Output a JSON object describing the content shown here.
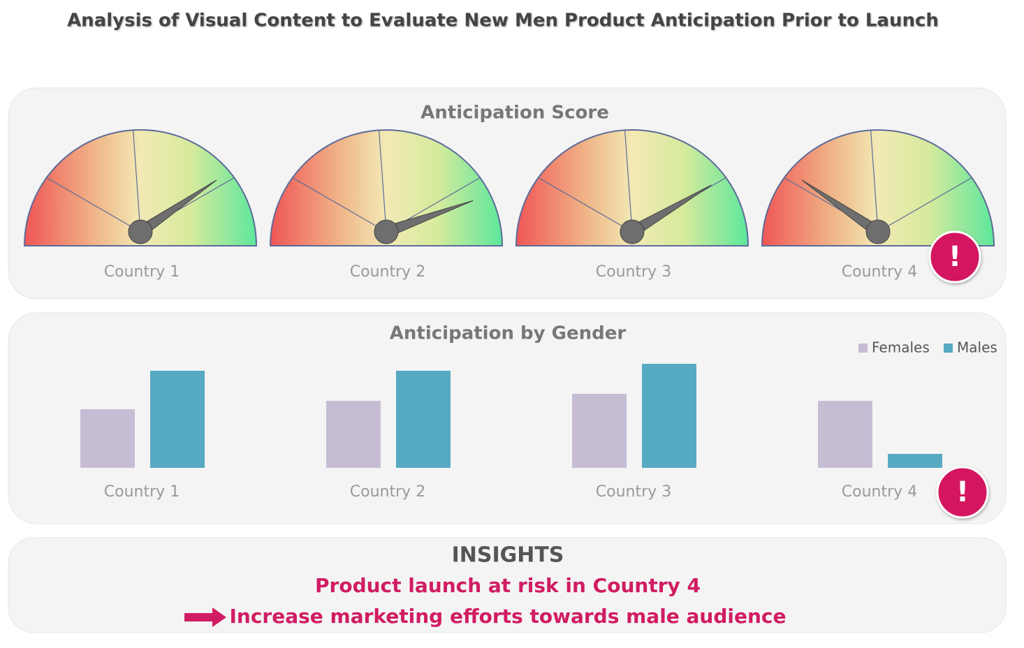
{
  "title": "Analysis of Visual Content to Evaluate New Men Product Anticipation Prior to Launch",
  "chart_data": [
    {
      "type": "gauge",
      "title": "Anticipation Score",
      "categories": [
        "Country 1",
        "Country 2",
        "Country 3",
        "Country 4"
      ],
      "values": [
        81,
        89,
        83,
        19
      ],
      "ylim": [
        0,
        100
      ]
    },
    {
      "type": "bar",
      "title": "Anticipation by Gender",
      "categories": [
        "Country 1",
        "Country 2",
        "Country 3",
        "Country 4"
      ],
      "series": [
        {
          "name": "Females",
          "color": "#c6bdd5",
          "values": [
            84,
            96,
            106,
            96
          ]
        },
        {
          "name": "Males",
          "color": "#56aac1",
          "values": [
            139,
            139,
            149,
            20
          ]
        }
      ],
      "ylim": [
        0,
        150
      ],
      "legend": "top-right"
    }
  ],
  "alert": "!",
  "insights": {
    "title": "INSIGHTS",
    "lines": [
      "Product launch at risk in Country 4",
      "Increase marketing efforts towards male audience"
    ]
  }
}
